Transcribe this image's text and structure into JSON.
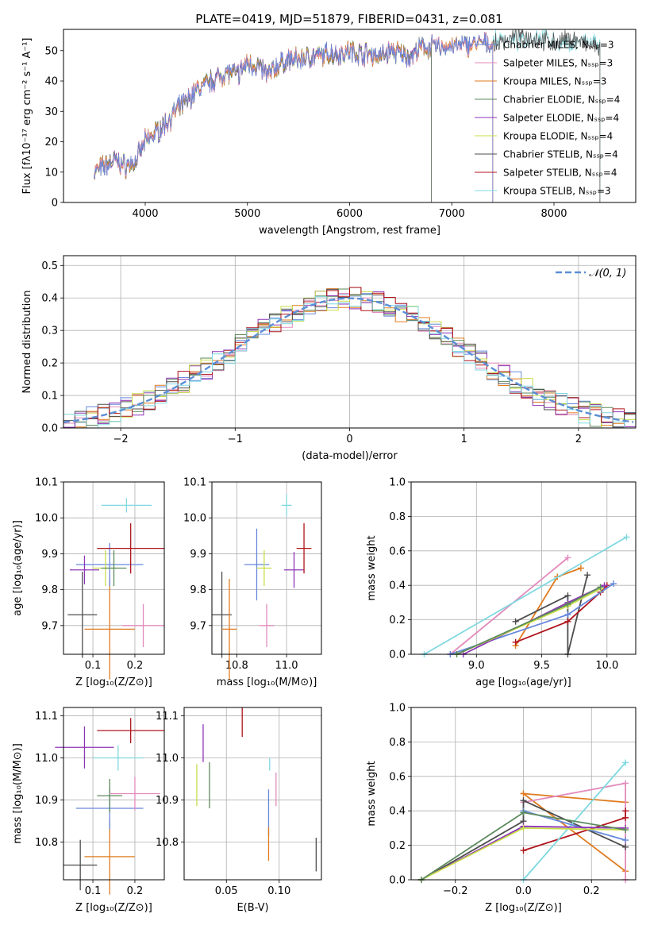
{
  "figure_title": "PLATE=0419, MJD=51879, FIBERID=0431, z=0.081",
  "colors": {
    "Chabrier MILES": "#6688dd",
    "Salpeter MILES": "#e38bbd",
    "Kroupa MILES": "#e07b1f",
    "Chabrier ELODIE": "#5c8a5c",
    "Salpeter ELODIE": "#8e34b8",
    "Kroupa ELODIE": "#c8de4a",
    "Chabrier STELIB": "#4d4d4d",
    "Salpeter STELIB": "#b0141c",
    "Kroupa STELIB": "#7fd8e0"
  },
  "chart_data": [
    {
      "id": "spectrum",
      "type": "line",
      "title": "PLATE=0419, MJD=51879, FIBERID=0431, z=0.081",
      "xlabel": "wavelength [Angstrom, rest frame]",
      "ylabel": "Flux [fλ10⁻¹⁷ erg cm⁻² s⁻¹ A⁻¹]",
      "xlim": [
        3200,
        8800
      ],
      "ylim": [
        0,
        57
      ],
      "xticks": [
        4000,
        5000,
        6000,
        7000,
        8000
      ],
      "yticks": [
        0,
        10,
        20,
        30,
        40,
        50
      ],
      "grid": false,
      "legend_position": "right",
      "legend": [
        "Chabrier MILES, N_SSP=3",
        "Salpeter MILES, N_SSP=3",
        "Kroupa MILES, N_SSP=3",
        "Chabrier ELODIE, N_SSP=4",
        "Salpeter ELODIE, N_SSP=4",
        "Kroupa ELODIE, N_SSP=4",
        "Chabrier STELIB, N_SSP=4",
        "Salpeter STELIB, N_SSP=4",
        "Kroupa STELIB, N_SSP=3"
      ],
      "x": [
        3500,
        3600,
        3700,
        3800,
        3900,
        4000,
        4100,
        4200,
        4300,
        4400,
        4500,
        4600,
        4700,
        4800,
        4900,
        5000,
        5100,
        5200,
        5300,
        5400,
        5500,
        5600,
        5700,
        5800,
        5900,
        6000,
        6100,
        6200,
        6300,
        6400,
        6500,
        6600,
        6700,
        6800,
        6900,
        7000,
        7100,
        7200,
        7300,
        7400,
        7500,
        7600,
        7700,
        7800,
        7900,
        8000,
        8100,
        8200,
        8300,
        8400
      ],
      "y": [
        10,
        12,
        14,
        12,
        13,
        20,
        23,
        26,
        30,
        33,
        37,
        39,
        41,
        43,
        42,
        46,
        45,
        42,
        45,
        47,
        47,
        48,
        48,
        49,
        49,
        50,
        49,
        49,
        48,
        50,
        49,
        48,
        51,
        51,
        51,
        52,
        52,
        52,
        52,
        52,
        54,
        54,
        54,
        54,
        54,
        53,
        53,
        53,
        52,
        52
      ],
      "series_end": {
        "Chabrier MILES": 7400,
        "Salpeter MILES": 7400,
        "Kroupa MILES": 7400,
        "Chabrier ELODIE": 6800,
        "Salpeter ELODIE": 6800,
        "Kroupa ELODIE": 6800,
        "Chabrier STELIB": 8450,
        "Salpeter STELIB": 7400,
        "Kroupa STELIB": 8450
      }
    },
    {
      "id": "residuals",
      "type": "line",
      "xlabel": "(data-model)/error",
      "ylabel": "Normed distribution",
      "xlim": [
        -2.5,
        2.5
      ],
      "ylim": [
        0,
        0.53
      ],
      "xticks": [
        -2,
        -1,
        0,
        1,
        2
      ],
      "yticks": [
        0.0,
        0.1,
        0.2,
        0.3,
        0.4,
        0.5
      ],
      "grid": true,
      "legend_position": "top-right",
      "legend": [
        "𝒩(0, 1)"
      ],
      "bin_width": 0.1
    },
    {
      "id": "age_vs_Z",
      "type": "scatter",
      "xlabel": "Z [log₁₀(Z/Z⊙)]",
      "ylabel": "age  [log₁₀(age/yr)]",
      "xlim": [
        0.03,
        0.27
      ],
      "ylim": [
        9.62,
        10.1
      ],
      "xticks": [
        0.1,
        0.2
      ],
      "yticks": [
        9.7,
        9.8,
        9.9,
        10.0,
        10.1
      ],
      "grid": true,
      "points": [
        {
          "model": "Chabrier STELIB",
          "x": 0.075,
          "y": 9.73,
          "xerr": 0.035,
          "yerr": 0.12
        },
        {
          "model": "Kroupa MILES",
          "x": 0.14,
          "y": 9.69,
          "xerr": 0.06,
          "yerr": 0.14
        },
        {
          "model": "Salpeter MILES",
          "x": 0.22,
          "y": 9.7,
          "xerr": 0.05,
          "yerr": 0.06
        },
        {
          "model": "Chabrier MILES",
          "x": 0.14,
          "y": 9.87,
          "xerr": 0.08,
          "yerr": 0.06
        },
        {
          "model": "Salpeter ELODIE",
          "x": 0.08,
          "y": 9.855,
          "xerr": 0.035,
          "yerr": 0.04
        },
        {
          "model": "Kroupa ELODIE",
          "x": 0.13,
          "y": 9.86,
          "xerr": 0.03,
          "yerr": 0.05
        },
        {
          "model": "Chabrier ELODIE",
          "x": 0.15,
          "y": 9.86,
          "xerr": 0.03,
          "yerr": 0.05
        },
        {
          "model": "Salpeter STELIB",
          "x": 0.19,
          "y": 9.915,
          "xerr": 0.08,
          "yerr": 0.07
        },
        {
          "model": "Kroupa STELIB",
          "x": 0.18,
          "y": 10.035,
          "xerr": 0.06,
          "yerr": 0.02
        }
      ]
    },
    {
      "id": "age_vs_mass",
      "type": "scatter",
      "xlabel": "mass [log₁₀(M/M⊙)]",
      "ylabel": "",
      "xlim": [
        10.7,
        11.14
      ],
      "ylim": [
        9.62,
        10.1
      ],
      "xticks": [
        10.8,
        11.0
      ],
      "yticks": [
        9.7,
        9.8,
        9.9,
        10.0,
        10.1
      ],
      "grid": true,
      "points": [
        {
          "model": "Chabrier STELIB",
          "x": 10.74,
          "y": 9.73,
          "xerr": 0.04,
          "yerr": 0.12
        },
        {
          "model": "Kroupa MILES",
          "x": 10.77,
          "y": 9.69,
          "xerr": 0.03,
          "yerr": 0.14
        },
        {
          "model": "Salpeter MILES",
          "x": 10.92,
          "y": 9.7,
          "xerr": 0.03,
          "yerr": 0.06
        },
        {
          "model": "Chabrier MILES",
          "x": 10.88,
          "y": 9.87,
          "xerr": 0.05,
          "yerr": 0.1
        },
        {
          "model": "Kroupa ELODIE",
          "x": 10.91,
          "y": 9.86,
          "xerr": 0.03,
          "yerr": 0.05
        },
        {
          "model": "Salpeter ELODIE",
          "x": 11.03,
          "y": 9.855,
          "xerr": 0.04,
          "yerr": 0.05
        },
        {
          "model": "Salpeter STELIB",
          "x": 11.07,
          "y": 9.915,
          "xerr": 0.03,
          "yerr": 0.07
        },
        {
          "model": "Kroupa STELIB",
          "x": 11.0,
          "y": 10.035,
          "xerr": 0.02,
          "yerr": 0.03
        }
      ]
    },
    {
      "id": "massweight_vs_age",
      "type": "line",
      "xlabel": "age  [log₁₀(age/yr)]",
      "ylabel": "mass weight",
      "xlim": [
        8.5,
        10.22
      ],
      "ylim": [
        0,
        1.0
      ],
      "xticks": [
        9.0,
        9.5,
        10.0
      ],
      "yticks": [
        0.0,
        0.2,
        0.4,
        0.6,
        0.8,
        1.0
      ],
      "grid": true,
      "series": [
        {
          "model": "Salpeter MILES",
          "x": [
            8.8,
            9.7
          ],
          "y": [
            0.0,
            0.56
          ]
        },
        {
          "model": "Kroupa MILES",
          "x": [
            9.3,
            9.62,
            9.8
          ],
          "y": [
            0.05,
            0.45,
            0.5
          ]
        },
        {
          "model": "Chabrier STELIB",
          "x": [
            9.3,
            9.7,
            9.7,
            9.85
          ],
          "y": [
            0.19,
            0.34,
            0.0,
            0.46
          ]
        },
        {
          "model": "Salpeter STELIB",
          "x": [
            9.3,
            9.7,
            9.95,
            10.0
          ],
          "y": [
            0.07,
            0.19,
            0.36,
            0.4
          ]
        },
        {
          "model": "Kroupa STELIB",
          "x": [
            8.6,
            10.15
          ],
          "y": [
            0.0,
            0.68
          ]
        },
        {
          "model": "Chabrier MILES",
          "x": [
            8.8,
            9.7,
            10.05
          ],
          "y": [
            0.0,
            0.23,
            0.41
          ]
        },
        {
          "model": "Salpeter ELODIE",
          "x": [
            8.9,
            9.7,
            9.98
          ],
          "y": [
            0.0,
            0.3,
            0.4
          ]
        },
        {
          "model": "Kroupa ELODIE",
          "x": [
            8.85,
            9.7,
            9.95
          ],
          "y": [
            0.0,
            0.28,
            0.38
          ]
        },
        {
          "model": "Chabrier ELODIE",
          "x": [
            8.85,
            9.7,
            9.95
          ],
          "y": [
            0.0,
            0.29,
            0.39
          ]
        }
      ]
    },
    {
      "id": "mass_vs_Z",
      "type": "scatter",
      "xlabel": "Z [log₁₀(Z/Z⊙)]",
      "ylabel": "mass [log₁₀(M/M⊙)]",
      "xlim": [
        0.03,
        0.27
      ],
      "ylim": [
        10.71,
        11.12
      ],
      "xticks": [
        0.1,
        0.2
      ],
      "yticks": [
        10.8,
        10.9,
        11.0,
        11.1
      ],
      "grid": true,
      "points": [
        {
          "model": "Chabrier STELIB",
          "x": 0.07,
          "y": 10.745,
          "xerr": 0.04,
          "yerr": 0.06
        },
        {
          "model": "Kroupa MILES",
          "x": 0.14,
          "y": 10.765,
          "xerr": 0.06,
          "yerr": 0.09
        },
        {
          "model": "Chabrier MILES",
          "x": 0.14,
          "y": 10.88,
          "xerr": 0.08,
          "yerr": 0.05
        },
        {
          "model": "Chabrier ELODIE",
          "x": 0.14,
          "y": 10.91,
          "xerr": 0.03,
          "yerr": 0.04
        },
        {
          "model": "Salpeter MILES",
          "x": 0.2,
          "y": 10.915,
          "xerr": 0.06,
          "yerr": 0.04
        },
        {
          "model": "Kroupa STELIB",
          "x": 0.16,
          "y": 11.0,
          "xerr": 0.06,
          "yerr": 0.03
        },
        {
          "model": "Salpeter ELODIE",
          "x": 0.08,
          "y": 11.025,
          "xerr": 0.07,
          "yerr": 0.05
        },
        {
          "model": "Salpeter STELIB",
          "x": 0.19,
          "y": 11.065,
          "xerr": 0.08,
          "yerr": 0.03
        }
      ]
    },
    {
      "id": "mass_vs_EBV",
      "type": "scatter",
      "xlabel": "E(B-V)",
      "ylabel": "",
      "xlim": [
        0.01,
        0.14
      ],
      "ylim": [
        10.71,
        11.12
      ],
      "xticks": [
        0.05,
        0.1
      ],
      "yticks": [
        10.8,
        10.9,
        11.0,
        11.1
      ],
      "grid": true,
      "points": [
        {
          "model": "Kroupa ELODIE",
          "x": 0.022,
          "y": 10.935,
          "xerr": 0,
          "yerr": 0.05
        },
        {
          "model": "Salpeter ELODIE",
          "x": 0.028,
          "y": 11.035,
          "xerr": 0,
          "yerr": 0.045
        },
        {
          "model": "Chabrier ELODIE",
          "x": 0.034,
          "y": 10.935,
          "xerr": 0,
          "yerr": 0.055
        },
        {
          "model": "Salpeter STELIB",
          "x": 0.065,
          "y": 11.085,
          "xerr": 0,
          "yerr": 0.035
        },
        {
          "model": "Chabrier MILES",
          "x": 0.09,
          "y": 10.87,
          "xerr": 0,
          "yerr": 0.055
        },
        {
          "model": "Kroupa MILES",
          "x": 0.09,
          "y": 10.795,
          "xerr": 0,
          "yerr": 0.04
        },
        {
          "model": "Kroupa STELIB",
          "x": 0.091,
          "y": 10.985,
          "xerr": 0,
          "yerr": 0.015
        },
        {
          "model": "Salpeter MILES",
          "x": 0.097,
          "y": 10.925,
          "xerr": 0,
          "yerr": 0.04
        },
        {
          "model": "Chabrier STELIB",
          "x": 0.135,
          "y": 10.77,
          "xerr": 0,
          "yerr": 0.04
        }
      ]
    },
    {
      "id": "massweight_vs_Z",
      "type": "line",
      "xlabel": "Z [log₁₀(Z/Z⊙)]",
      "ylabel": "mass weight",
      "xlim": [
        -0.33,
        0.33
      ],
      "ylim": [
        0,
        1.0
      ],
      "xticks": [
        -0.2,
        0.0,
        0.2
      ],
      "yticks": [
        0.0,
        0.2,
        0.4,
        0.6,
        0.8,
        1.0
      ],
      "grid": true,
      "series": [
        {
          "model": "Kroupa MILES",
          "x": [
            0.3,
            0.0,
            0.3
          ],
          "y": [
            0.05,
            0.5,
            0.45
          ]
        },
        {
          "model": "Salpeter MILES",
          "x": [
            0.0,
            0.3,
            0.3
          ],
          "y": [
            0.45,
            0.56,
            0.0
          ]
        },
        {
          "model": "Chabrier STELIB",
          "x": [
            -0.3,
            0.0,
            0.0,
            0.3
          ],
          "y": [
            0.0,
            0.34,
            0.46,
            0.19
          ]
        },
        {
          "model": "Salpeter STELIB",
          "x": [
            0.0,
            0.3,
            0.3
          ],
          "y": [
            0.17,
            0.36,
            0.4
          ]
        },
        {
          "model": "Kroupa STELIB",
          "x": [
            0.0,
            0.3
          ],
          "y": [
            0.0,
            0.68
          ]
        },
        {
          "model": "Chabrier MILES",
          "x": [
            0.0,
            0.3
          ],
          "y": [
            0.4,
            0.23
          ]
        },
        {
          "model": "Salpeter ELODIE",
          "x": [
            -0.3,
            0.0,
            0.3
          ],
          "y": [
            0.0,
            0.31,
            0.3
          ]
        },
        {
          "model": "Kroupa ELODIE",
          "x": [
            -0.3,
            0.0,
            0.3
          ],
          "y": [
            0.0,
            0.3,
            0.29
          ]
        },
        {
          "model": "Chabrier ELODIE",
          "x": [
            -0.3,
            0.0,
            0.3
          ],
          "y": [
            0.0,
            0.39,
            0.29
          ]
        }
      ]
    }
  ]
}
